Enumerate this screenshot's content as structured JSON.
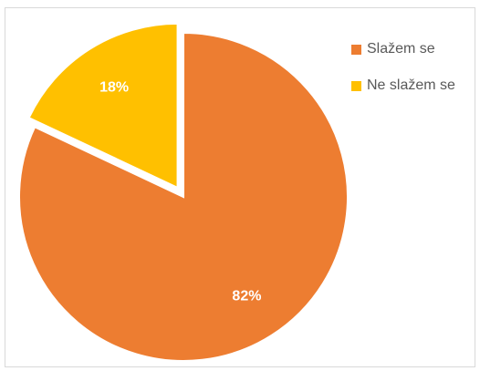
{
  "chart_data": {
    "type": "pie",
    "categories": [
      "Slažem se",
      "Ne slažem se"
    ],
    "values": [
      82,
      18
    ],
    "labels": [
      "82%",
      "18%"
    ],
    "colors": [
      "#ED7D31",
      "#FFC000"
    ],
    "exploded": [
      false,
      true
    ],
    "legend": {
      "position": "right",
      "entries": [
        "Slažem se",
        "Ne slažem se"
      ]
    }
  }
}
